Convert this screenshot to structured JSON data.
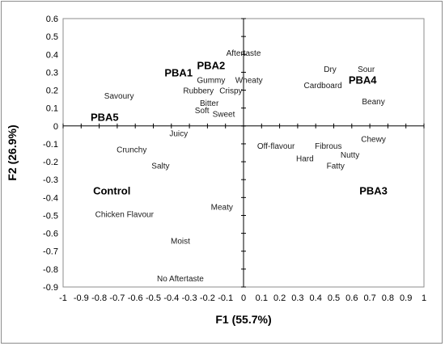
{
  "chart_data": {
    "type": "scatter",
    "xlabel": "F1 (55.7%)",
    "ylabel": "F2 (26.9%)",
    "xlim": [
      -1,
      1
    ],
    "ylim": [
      -0.9,
      0.6
    ],
    "x_ticks": [
      "-1",
      "-0.9",
      "-0.8",
      "-0.7",
      "-0.6",
      "-0.5",
      "-0.4",
      "-0.3",
      "-0.2",
      "-0.1",
      "0",
      "0.1",
      "0.2",
      "0.3",
      "0.4",
      "0.5",
      "0.6",
      "0.7",
      "0.8",
      "0.9",
      "1"
    ],
    "y_ticks": [
      "0.6",
      "0.5",
      "0.4",
      "0.3",
      "0.2",
      "0.1",
      "0",
      "-0.1",
      "-0.2",
      "-0.3",
      "-0.4",
      "-0.5",
      "-0.6",
      "-0.7",
      "-0.8",
      "-0.9"
    ],
    "grid": false,
    "attributes": [
      {
        "label": "Aftertaste",
        "x": 0.0,
        "y": 0.41
      },
      {
        "label": "Dry",
        "x": 0.48,
        "y": 0.32
      },
      {
        "label": "Sour",
        "x": 0.68,
        "y": 0.32
      },
      {
        "label": "Gummy",
        "x": -0.18,
        "y": 0.26
      },
      {
        "label": "Wheaty",
        "x": 0.03,
        "y": 0.26
      },
      {
        "label": "Cardboard",
        "x": 0.44,
        "y": 0.23
      },
      {
        "label": "Rubbery",
        "x": -0.25,
        "y": 0.2
      },
      {
        "label": "Crispy",
        "x": -0.07,
        "y": 0.2
      },
      {
        "label": "Savoury",
        "x": -0.69,
        "y": 0.17
      },
      {
        "label": "Beany",
        "x": 0.72,
        "y": 0.14
      },
      {
        "label": "Bitter",
        "x": -0.19,
        "y": 0.13
      },
      {
        "label": "Soft",
        "x": -0.23,
        "y": 0.09
      },
      {
        "label": "Sweet",
        "x": -0.11,
        "y": 0.07
      },
      {
        "label": "Juicy",
        "x": -0.36,
        "y": -0.04
      },
      {
        "label": "Chewy",
        "x": 0.72,
        "y": -0.07
      },
      {
        "label": "Off-flavour",
        "x": 0.18,
        "y": -0.11
      },
      {
        "label": "Fibrous",
        "x": 0.47,
        "y": -0.11
      },
      {
        "label": "Crunchy",
        "x": -0.62,
        "y": -0.13
      },
      {
        "label": "Nutty",
        "x": 0.59,
        "y": -0.16
      },
      {
        "label": "Hard",
        "x": 0.34,
        "y": -0.18
      },
      {
        "label": "Fatty",
        "x": 0.51,
        "y": -0.22
      },
      {
        "label": "Salty",
        "x": -0.46,
        "y": -0.22
      },
      {
        "label": "Meaty",
        "x": -0.12,
        "y": -0.45
      },
      {
        "label": "Chicken Flavour",
        "x": -0.66,
        "y": -0.49
      },
      {
        "label": "Moist",
        "x": -0.35,
        "y": -0.64
      },
      {
        "label": "No Aftertaste",
        "x": -0.35,
        "y": -0.85
      }
    ],
    "products": [
      {
        "label": "PBA1",
        "x": -0.36,
        "y": 0.3
      },
      {
        "label": "PBA2",
        "x": -0.18,
        "y": 0.34
      },
      {
        "label": "PBA4",
        "x": 0.66,
        "y": 0.26
      },
      {
        "label": "PBA5",
        "x": -0.77,
        "y": 0.05
      },
      {
        "label": "Control",
        "x": -0.73,
        "y": -0.36
      },
      {
        "label": "PBA3",
        "x": 0.72,
        "y": -0.36
      }
    ]
  }
}
